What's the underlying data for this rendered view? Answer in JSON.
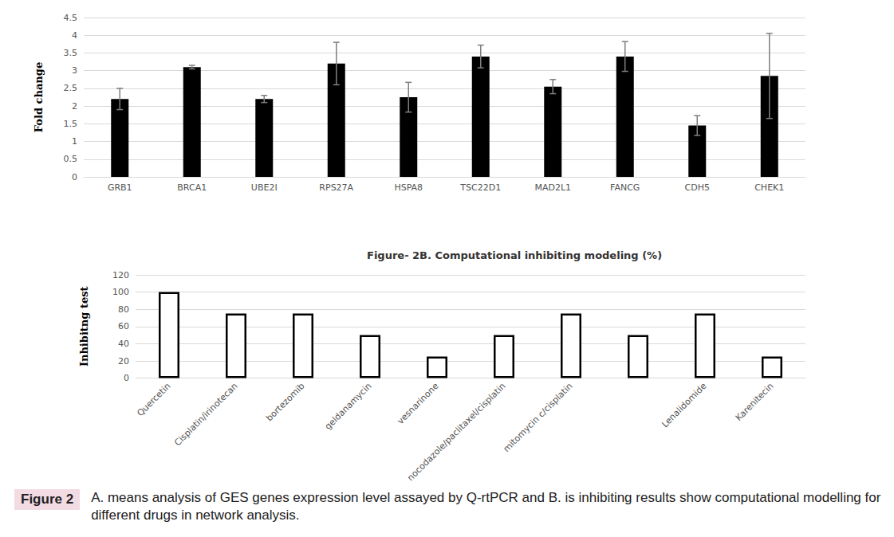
{
  "chart_data": [
    {
      "type": "bar",
      "ylabel": "Fold change",
      "categories": [
        "GRB1",
        "BRCA1",
        "UBE2I",
        "RPS27A",
        "HSPA8",
        "TSC22D1",
        "MAD2L1",
        "FANCG",
        "CDH5",
        "CHEK1"
      ],
      "values": [
        2.2,
        3.1,
        2.2,
        3.2,
        2.25,
        3.4,
        2.55,
        3.4,
        1.45,
        2.85
      ],
      "errors": [
        0.3,
        0.05,
        0.1,
        0.6,
        0.42,
        0.32,
        0.2,
        0.42,
        0.28,
        1.2
      ],
      "color": "#000000",
      "ylim": [
        0,
        4.5
      ],
      "yticks": [
        0,
        0.5,
        1,
        1.5,
        2,
        2.5,
        3,
        3.5,
        4,
        4.5
      ],
      "grid": true
    },
    {
      "type": "bar",
      "title": "Figure- 2B. Computational inhibiting modeling (%)",
      "ylabel": "Inhibitng test",
      "categories": [
        "Quercetin",
        "Cisplatin/irinotecan",
        "bortezomib",
        "geldanamycin",
        "vesnarinone",
        "nocodazole/paclitaxel/cisplatin",
        "mitomycin c/cisplatin",
        null,
        "Lenalidomide",
        "Karenitecin"
      ],
      "values": [
        100,
        75,
        75,
        50,
        25,
        50,
        75,
        50,
        75,
        25
      ],
      "color": "#ffffff",
      "ylim": [
        0,
        120
      ],
      "yticks": [
        0,
        20,
        40,
        60,
        80,
        100,
        120
      ],
      "grid": true
    }
  ],
  "caption": {
    "label": "Figure 2",
    "text": "A. means analysis of GES genes expression level assayed by Q-rtPCR and B. is inhibiting results show computational modelling for different drugs in network analysis."
  }
}
